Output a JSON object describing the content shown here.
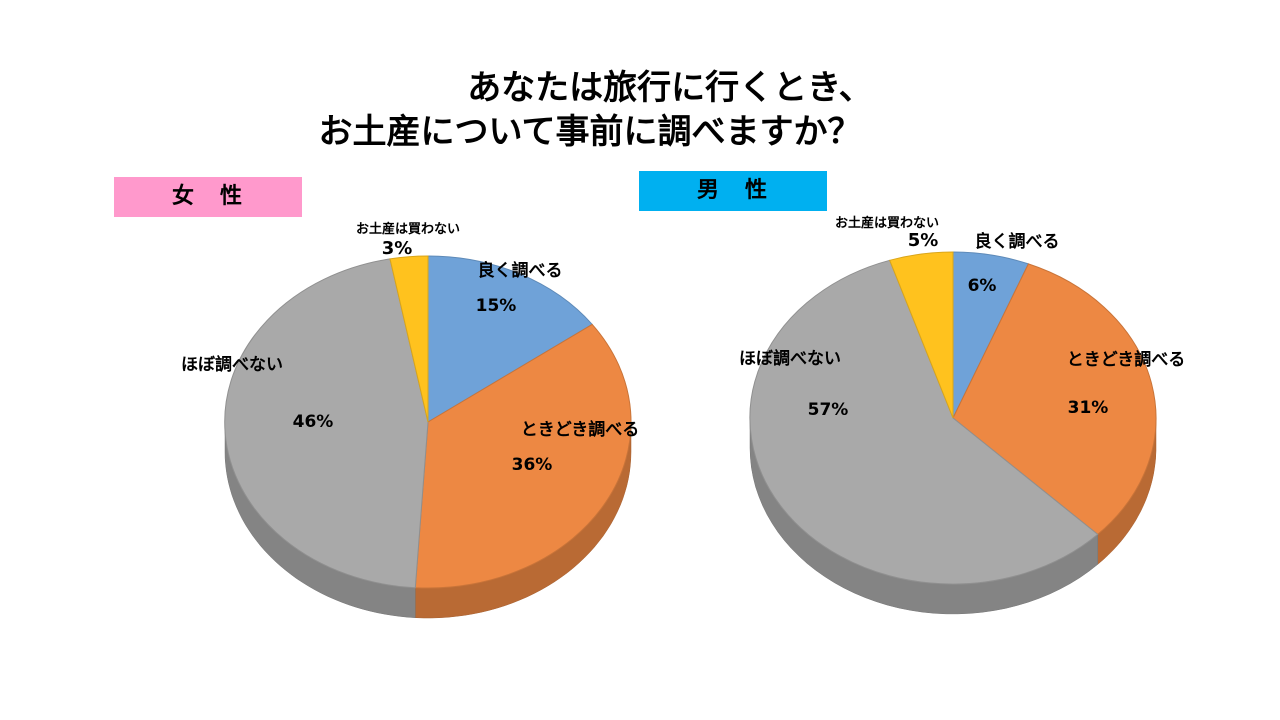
{
  "title": {
    "line1": "あなたは旅行に行くとき、",
    "line2": "お土産について事前に調べますか？"
  },
  "colors": {
    "female_badge": "#FF99CC",
    "male_badge": "#00B0F0",
    "yoku": "#6FA2D8",
    "tokidoki": "#ED8843",
    "hobo": "#A9A9A9",
    "kawanai": "#FFC21E"
  },
  "chart_data": [
    {
      "type": "pie",
      "title": "女　性",
      "categories": [
        "良く調べる",
        "ときどき調べる",
        "ほぼ調べない",
        "お土産は買わない"
      ],
      "values": [
        15,
        36,
        46,
        3
      ],
      "value_labels": [
        "15%",
        "36%",
        "46%",
        "3%"
      ],
      "unit": "%"
    },
    {
      "type": "pie",
      "title": "男　性",
      "categories": [
        "良く調べる",
        "ときどき調べる",
        "ほぼ調べない",
        "お土産は買わない"
      ],
      "values": [
        6,
        31,
        57,
        5
      ],
      "value_labels": [
        "6%",
        "31%",
        "57%",
        "5%"
      ],
      "unit": "%"
    }
  ]
}
